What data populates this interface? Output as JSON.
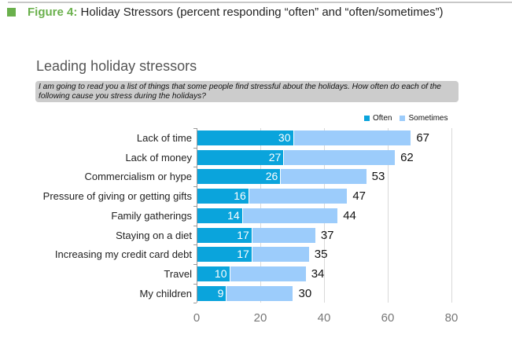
{
  "figure": {
    "number_label": "Figure 4:",
    "title": "Holiday Stressors (percent responding “often” and “often/sometimes”)"
  },
  "chart": {
    "title": "Leading holiday stressors",
    "question": "I am going to read you a list of things that some people find stressful about the holidays. How often do each of the following cause you stress during the holidays?",
    "legend": [
      {
        "name": "Often",
        "color": "#0aa4dc"
      },
      {
        "name": "Sometimes",
        "color": "#9cccfb"
      }
    ],
    "x_ticks": [
      "0",
      "20",
      "40",
      "60",
      "80"
    ]
  },
  "chart_data": {
    "type": "bar",
    "orientation": "horizontal",
    "stacked": true,
    "title": "Leading holiday stressors",
    "subtitle": "I am going to read you a list of things that some people find stressful about the holidays. How often do each of the following cause you stress during the holidays?",
    "categories": [
      "Lack of time",
      "Lack of money",
      "Commercialism or hype",
      "Pressure of giving or getting gifts",
      "Family gatherings",
      "Staying on a diet",
      "Increasing my credit card debt",
      "Travel",
      "My children"
    ],
    "series": [
      {
        "name": "Often",
        "color": "#0aa4dc",
        "values": [
          30,
          27,
          26,
          16,
          14,
          17,
          17,
          10,
          9
        ]
      },
      {
        "name": "Sometimes",
        "color": "#9cccfb",
        "values": [
          37,
          35,
          27,
          31,
          30,
          20,
          18,
          24,
          21
        ]
      }
    ],
    "totals": [
      67,
      62,
      53,
      47,
      44,
      37,
      35,
      34,
      30
    ],
    "xlabel": "",
    "ylabel": "",
    "xlim": [
      0,
      80
    ],
    "x_ticks": [
      0,
      20,
      40,
      60,
      80
    ],
    "grid": "vertical",
    "legend_position": "top-right"
  }
}
